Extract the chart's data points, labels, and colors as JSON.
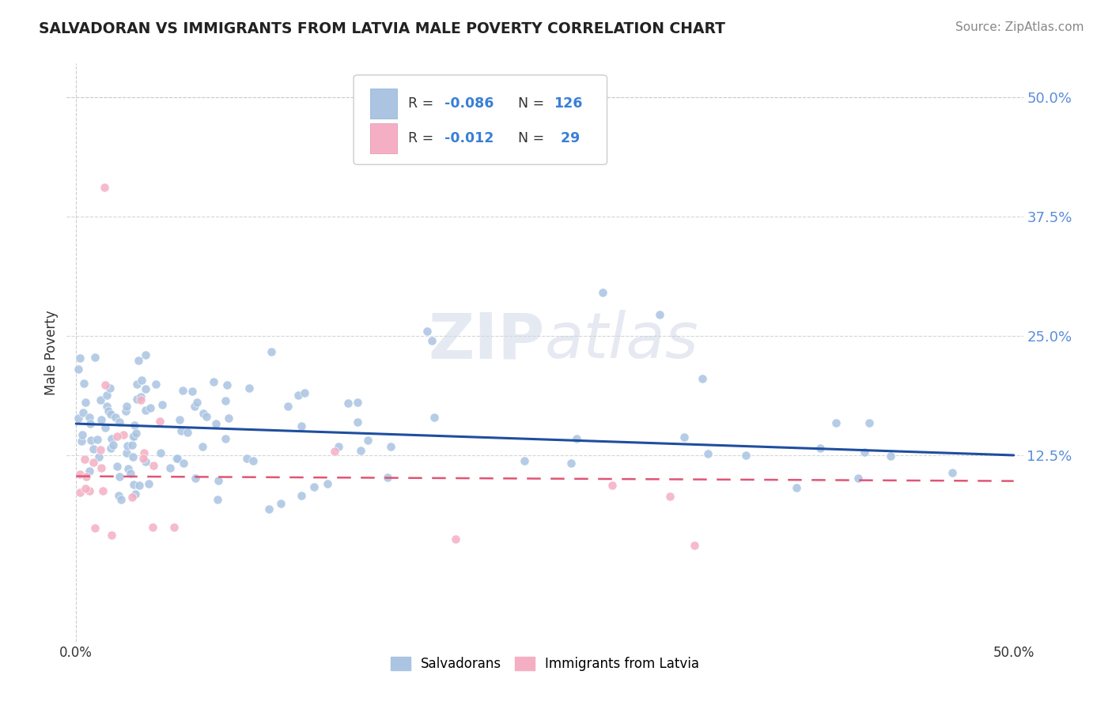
{
  "title": "SALVADORAN VS IMMIGRANTS FROM LATVIA MALE POVERTY CORRELATION CHART",
  "source": "Source: ZipAtlas.com",
  "ylabel": "Male Poverty",
  "xlim": [
    0.0,
    0.5
  ],
  "ylim": [
    0.0,
    0.5
  ],
  "xtick_labels": [
    "0.0%",
    "50.0%"
  ],
  "xtick_positions": [
    0.0,
    0.5
  ],
  "ytick_labels": [
    "12.5%",
    "25.0%",
    "37.5%",
    "50.0%"
  ],
  "ytick_positions": [
    0.125,
    0.25,
    0.375,
    0.5
  ],
  "legend_r1": "R = -0.086",
  "legend_n1": "N = 126",
  "legend_r2": "R = -0.012",
  "legend_n2": "N =  29",
  "salvadoran_color": "#aac4e2",
  "latvia_color": "#f4afc4",
  "salvadoran_line_color": "#1f4e9e",
  "latvia_line_color": "#e05575",
  "watermark_text": "ZIPatlas",
  "salv_trend": [
    0.158,
    0.125
  ],
  "latv_trend": [
    0.103,
    0.098
  ],
  "title_color": "#222222",
  "source_color": "#888888",
  "axis_label_color": "#333333",
  "tick_color": "#5b8dd9",
  "grid_color": "#cccccc",
  "legend_text_color": "#333333",
  "legend_value_color": "#3a7fd5"
}
